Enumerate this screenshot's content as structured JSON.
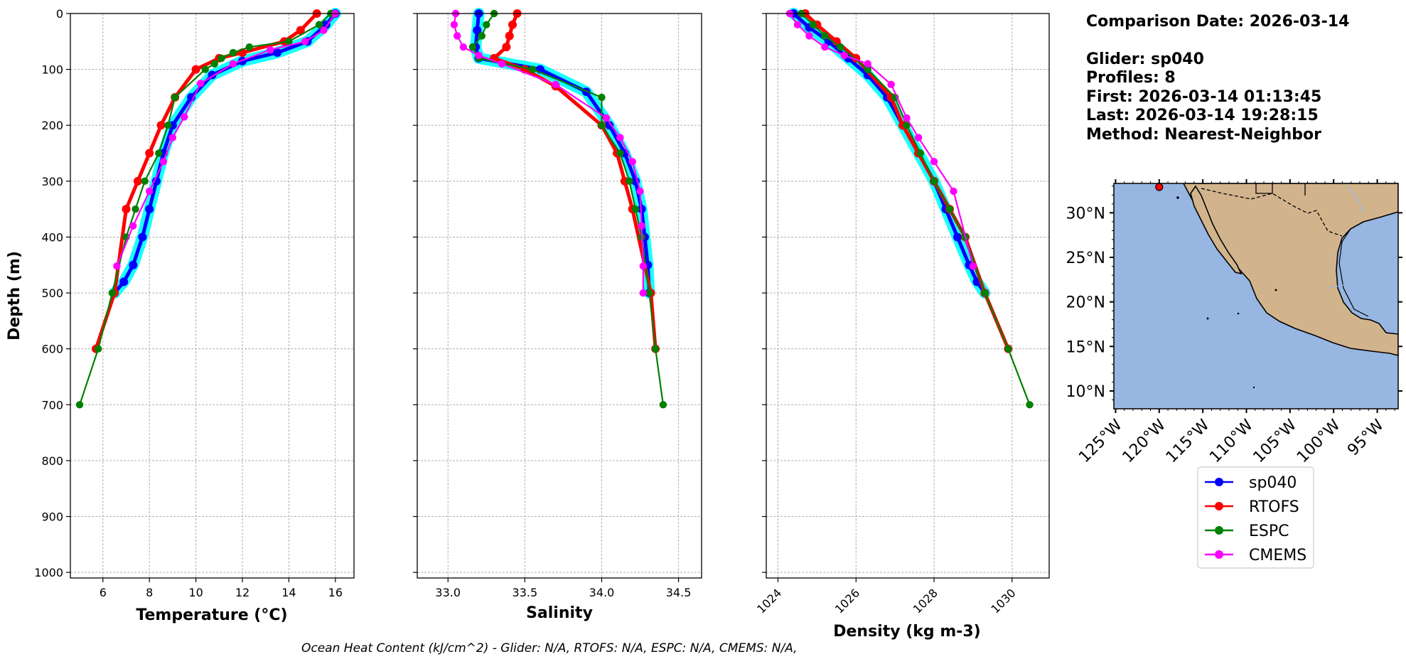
{
  "info": {
    "comparison_date": "Comparison Date: 2026-03-14",
    "glider": "Glider: sp040",
    "profiles": "Profiles: 8",
    "first": "First: 2026-03-14 01:13:45",
    "last": "Last: 2026-03-14 19:28:15",
    "method": "Method: Nearest-Neighbor"
  },
  "footer": "Ocean Heat Content (kJ/cm^2) - Glider: N/A,  RTOFS: N/A,  ESPC: N/A,  CMEMS: N/A,",
  "colors": {
    "sp040": "#0000ff",
    "sp040_spread": "#00ffff",
    "RTOFS": "#ff0000",
    "ESPC": "#008000",
    "CMEMS": "#ff00ff",
    "ocean": "#97b6e1",
    "land": "#d2b48c"
  },
  "chart_data": [
    {
      "type": "line",
      "xlabel": "Temperature (°C)",
      "ylabel": "Depth (m)",
      "xlim": [
        4.6,
        16.8
      ],
      "ylim": [
        1010,
        0
      ],
      "xticks": [
        6,
        8,
        10,
        12,
        14,
        16
      ],
      "yticks": [
        0,
        100,
        200,
        300,
        400,
        500,
        600,
        700,
        800,
        900,
        1000
      ],
      "grid": true,
      "series": [
        {
          "name": "sp040",
          "x": [
            16.0,
            15.6,
            14.8,
            13.5,
            12.0,
            10.7,
            9.8,
            9.0,
            8.6,
            8.3,
            8.0,
            7.7,
            7.3,
            6.9,
            6.5
          ],
          "y": [
            0,
            20,
            50,
            70,
            85,
            110,
            150,
            200,
            250,
            300,
            350,
            400,
            450,
            480,
            500
          ]
        },
        {
          "name": "RTOFS",
          "x": [
            15.2,
            14.5,
            13.8,
            12.0,
            11.0,
            10.0,
            9.1,
            8.5,
            8.0,
            7.5,
            7.0,
            6.5,
            5.7
          ],
          "y": [
            0,
            30,
            50,
            70,
            80,
            100,
            150,
            200,
            250,
            300,
            350,
            500,
            600
          ]
        },
        {
          "name": "ESPC",
          "x": [
            15.8,
            15.3,
            14.0,
            12.3,
            11.6,
            11.1,
            10.8,
            10.4,
            9.1,
            8.8,
            8.4,
            7.8,
            7.4,
            7.0,
            6.4,
            5.8,
            5.0
          ],
          "y": [
            0,
            20,
            50,
            60,
            70,
            80,
            90,
            100,
            150,
            200,
            250,
            300,
            350,
            400,
            500,
            600,
            700
          ]
        },
        {
          "name": "CMEMS",
          "x": [
            16.0,
            15.5,
            14.7,
            13.2,
            11.6,
            10.2,
            9.5,
            9.0,
            8.6,
            8.0,
            7.3,
            6.6
          ],
          "y": [
            0,
            30,
            50,
            65,
            90,
            125,
            185,
            222,
            265,
            318,
            380,
            452
          ]
        }
      ]
    },
    {
      "type": "line",
      "xlabel": "Salinity",
      "xlim": [
        32.8,
        34.65
      ],
      "ylim": [
        1010,
        0
      ],
      "xticks": [
        33.0,
        33.5,
        34.0,
        34.5
      ],
      "grid": true,
      "series": [
        {
          "name": "sp040",
          "x": [
            33.2,
            33.19,
            33.18,
            33.2,
            33.6,
            33.9,
            34.05,
            34.15,
            34.22,
            34.26,
            34.28,
            34.3,
            34.31
          ],
          "y": [
            0,
            30,
            60,
            80,
            100,
            140,
            200,
            250,
            300,
            350,
            400,
            450,
            500
          ]
        },
        {
          "name": "RTOFS",
          "x": [
            33.45,
            33.42,
            33.4,
            33.38,
            33.3,
            33.5,
            33.7,
            34.0,
            34.1,
            34.15,
            34.2,
            34.32,
            34.35
          ],
          "y": [
            0,
            20,
            40,
            60,
            80,
            100,
            130,
            200,
            250,
            300,
            350,
            500,
            600
          ]
        },
        {
          "name": "ESPC",
          "x": [
            33.3,
            33.25,
            33.22,
            33.16,
            33.2,
            33.55,
            34.0,
            34.0,
            34.12,
            34.18,
            34.22,
            34.26,
            34.31,
            34.35,
            34.4
          ],
          "y": [
            0,
            20,
            40,
            60,
            80,
            100,
            150,
            200,
            250,
            300,
            350,
            400,
            500,
            600,
            700
          ]
        },
        {
          "name": "CMEMS",
          "x": [
            33.05,
            33.04,
            33.06,
            33.1,
            33.2,
            33.35,
            33.7,
            34.03,
            34.12,
            34.2,
            34.25,
            34.26,
            34.27,
            34.27
          ],
          "y": [
            0,
            20,
            40,
            60,
            75,
            90,
            127,
            187,
            222,
            265,
            318,
            380,
            452,
            500
          ]
        }
      ]
    },
    {
      "type": "line",
      "xlabel": "Density (kg m-3)",
      "xlim": [
        1023.7,
        1030.95
      ],
      "ylim": [
        1010,
        0
      ],
      "xticks": [
        1024,
        1026,
        1028,
        1030
      ],
      "grid": true,
      "series": [
        {
          "name": "sp040",
          "x": [
            1024.4,
            1024.8,
            1025.3,
            1025.8,
            1026.3,
            1026.8,
            1027.2,
            1027.6,
            1028.0,
            1028.3,
            1028.6,
            1028.9,
            1029.1,
            1029.3
          ],
          "y": [
            0,
            25,
            50,
            80,
            110,
            150,
            200,
            250,
            300,
            350,
            400,
            450,
            480,
            500
          ]
        },
        {
          "name": "RTOFS",
          "x": [
            1024.7,
            1025.0,
            1025.5,
            1026.0,
            1026.9,
            1027.2,
            1027.6,
            1028.0,
            1028.4,
            1028.8,
            1029.3,
            1029.9
          ],
          "y": [
            0,
            20,
            50,
            80,
            150,
            200,
            250,
            300,
            350,
            400,
            500,
            600
          ]
        },
        {
          "name": "ESPC",
          "x": [
            1024.6,
            1024.9,
            1025.2,
            1025.6,
            1026.3,
            1027.0,
            1027.3,
            1027.65,
            1028.0,
            1028.4,
            1028.8,
            1029.3,
            1029.9,
            1030.45
          ],
          "y": [
            0,
            20,
            40,
            60,
            100,
            150,
            200,
            250,
            300,
            350,
            400,
            500,
            600,
            700
          ]
        },
        {
          "name": "CMEMS",
          "x": [
            1024.3,
            1024.5,
            1024.8,
            1025.2,
            1025.7,
            1026.3,
            1026.9,
            1027.3,
            1027.6,
            1028.0,
            1028.5,
            1029.0
          ],
          "y": [
            0,
            20,
            40,
            60,
            75,
            90,
            127,
            187,
            222,
            265,
            318,
            452
          ]
        }
      ]
    }
  ],
  "map": {
    "lat_ticks": [
      "30°N",
      "25°N",
      "20°N",
      "15°N",
      "10°N"
    ],
    "lon_ticks": [
      "125°W",
      "120°W",
      "115°W",
      "110°W",
      "105°W",
      "100°W",
      "95°W"
    ],
    "lat_values": [
      30,
      25,
      20,
      15,
      10
    ],
    "lon_values": [
      -125,
      -120,
      -115,
      -110,
      -105,
      -100,
      -95
    ],
    "lat_range": [
      8,
      33.3
    ],
    "lon_range": [
      -125.2,
      -92.6
    ],
    "glider_position": [
      -120.0,
      32.9
    ]
  },
  "legend": {
    "entries": [
      "sp040",
      "RTOFS",
      "ESPC",
      "CMEMS"
    ]
  }
}
